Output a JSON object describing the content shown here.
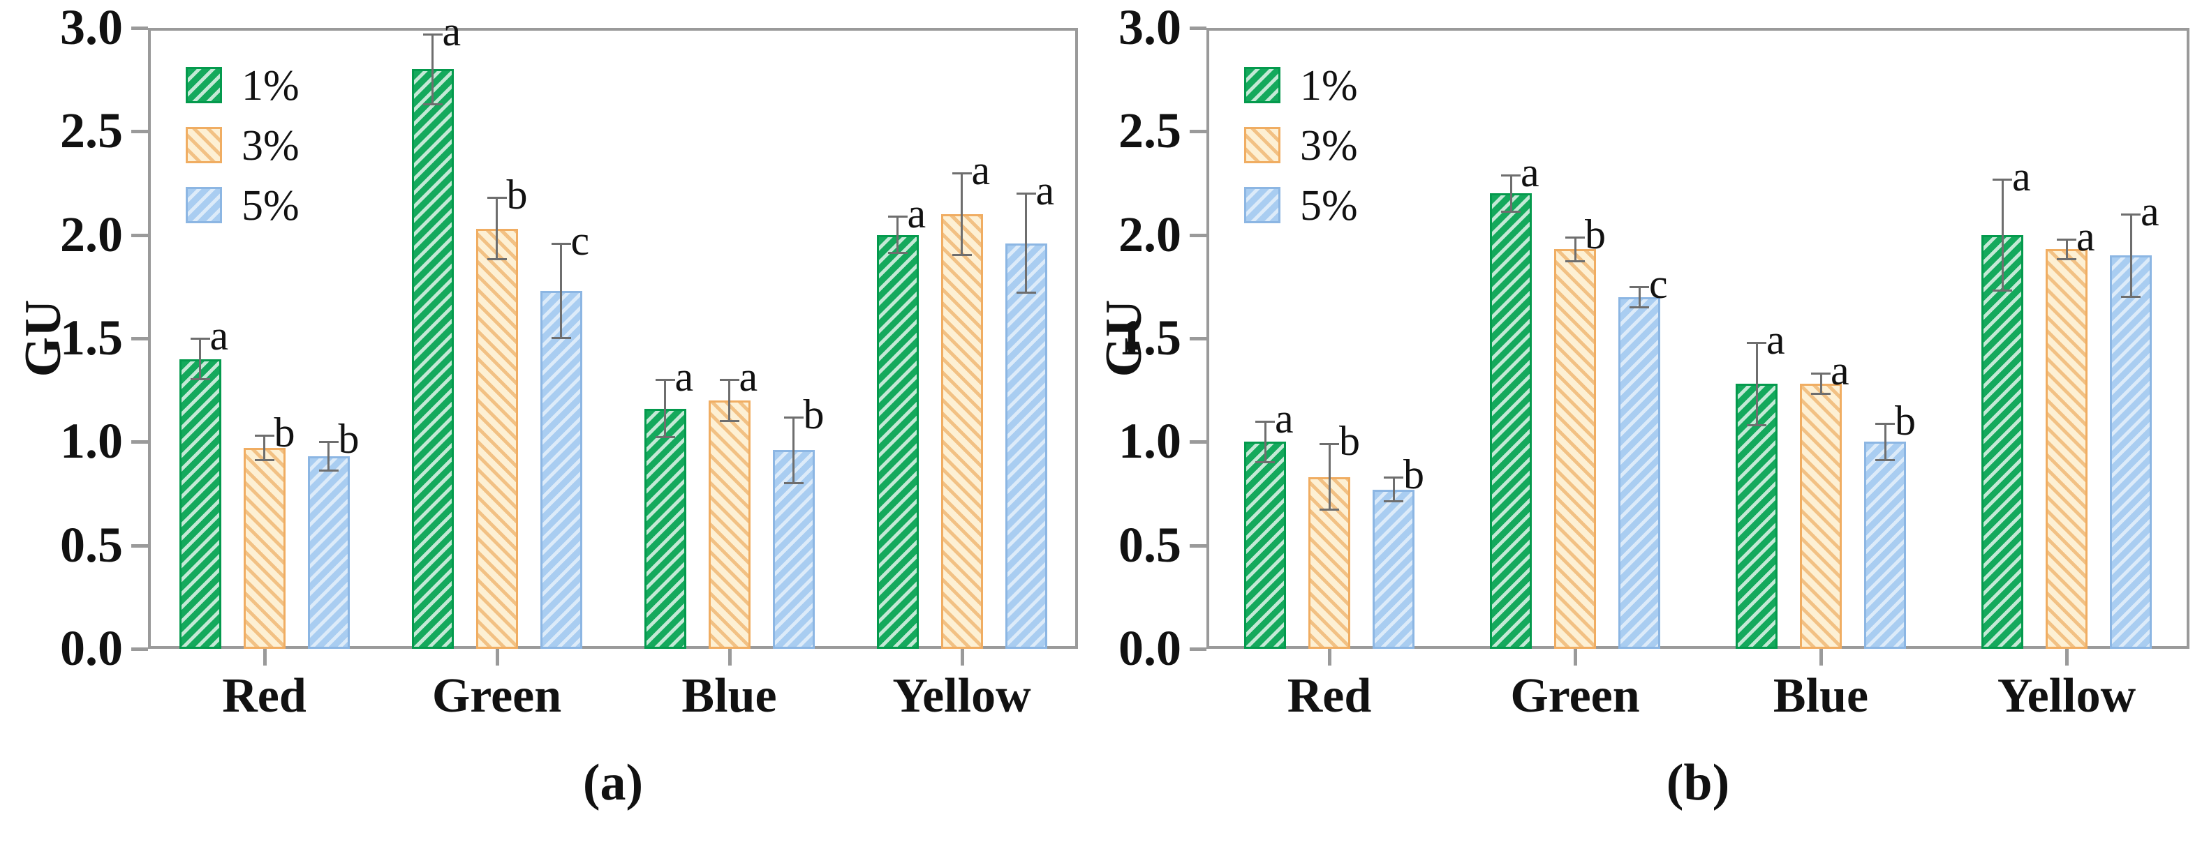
{
  "figure": {
    "background": "#ffffff",
    "frame_color": "#9a9a9a",
    "error_bar_color": "#6e6e6e",
    "text_color": "#111111"
  },
  "series_styles": [
    {
      "name": "1%",
      "fill": "#14a95c",
      "hatch": "rgba(255,255,255,0.75)",
      "border": "#049a4d",
      "hatch_angle": "135deg"
    },
    {
      "name": "3%",
      "fill": "#fdf0d4",
      "hatch": "#f2c184",
      "border": "#f0ad62",
      "hatch_angle": "45deg"
    },
    {
      "name": "5%",
      "fill": "#a9cdf1",
      "hatch": "rgba(255,255,255,0.6)",
      "border": "#8cb6e3",
      "hatch_angle": "135deg"
    }
  ],
  "chart_data": [
    {
      "type": "bar",
      "caption": "(a)",
      "ylabel": "GU",
      "ylim": [
        0.0,
        3.0
      ],
      "ytick_step": 0.5,
      "yticks": [
        "3.0",
        "2.5",
        "2.0",
        "1.5",
        "1.0",
        "0.5",
        "0.0"
      ],
      "grid": false,
      "legend_position": "top-left",
      "legend_entries": [
        "1%",
        "3%",
        "5%"
      ],
      "categories": [
        "Red",
        "Green",
        "Blue",
        "Yellow"
      ],
      "series": [
        {
          "name": "1%",
          "values": [
            1.4,
            2.8,
            1.16,
            2.0
          ],
          "errors": [
            0.1,
            0.17,
            0.14,
            0.09
          ],
          "letters": [
            "a",
            "a",
            "a",
            "a"
          ]
        },
        {
          "name": "3%",
          "values": [
            0.97,
            2.03,
            1.2,
            2.1
          ],
          "errors": [
            0.06,
            0.15,
            0.1,
            0.2
          ],
          "letters": [
            "b",
            "b",
            "a",
            "a"
          ]
        },
        {
          "name": "5%",
          "values": [
            0.93,
            1.73,
            0.96,
            1.96
          ],
          "errors": [
            0.07,
            0.23,
            0.16,
            0.24
          ],
          "letters": [
            "b",
            "c",
            "b",
            "a"
          ]
        }
      ]
    },
    {
      "type": "bar",
      "caption": "(b)",
      "ylabel": "GU",
      "ylim": [
        0.0,
        3.0
      ],
      "ytick_step": 0.5,
      "yticks": [
        "3.0",
        "2.5",
        "2.0",
        "1.5",
        "1.0",
        "0.5",
        "0.0"
      ],
      "grid": false,
      "legend_position": "top-left",
      "legend_entries": [
        "1%",
        "3%",
        "5%"
      ],
      "categories": [
        "Red",
        "Green",
        "Blue",
        "Yellow"
      ],
      "series": [
        {
          "name": "1%",
          "values": [
            1.0,
            2.2,
            1.28,
            2.0
          ],
          "errors": [
            0.1,
            0.09,
            0.2,
            0.27
          ],
          "letters": [
            "a",
            "a",
            "a",
            "a"
          ]
        },
        {
          "name": "3%",
          "values": [
            0.83,
            1.93,
            1.28,
            1.93
          ],
          "errors": [
            0.16,
            0.06,
            0.05,
            0.05
          ],
          "letters": [
            "b",
            "b",
            "a",
            "a"
          ]
        },
        {
          "name": "5%",
          "values": [
            0.77,
            1.7,
            1.0,
            1.9
          ],
          "errors": [
            0.06,
            0.05,
            0.09,
            0.2
          ],
          "letters": [
            "b",
            "c",
            "b",
            "a"
          ]
        }
      ]
    }
  ]
}
